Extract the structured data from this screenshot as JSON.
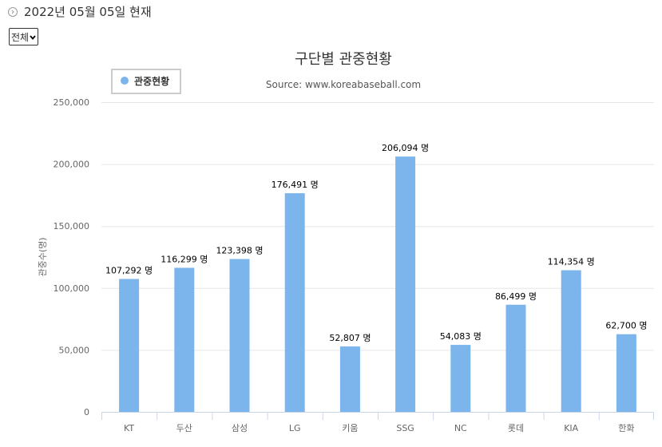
{
  "header": {
    "date_text": "2022년 05월 05일 현재"
  },
  "filter": {
    "selected": "전체"
  },
  "chart_data": {
    "type": "bar",
    "title": "구단별 관중현황",
    "subtitle": "Source: www.koreabaseball.com",
    "ylabel": "관중수(명)",
    "xlabel": "",
    "legend": {
      "label": "관중현황",
      "placement": "top-left"
    },
    "categories": [
      "KT",
      "두산",
      "삼성",
      "LG",
      "키움",
      "SSG",
      "NC",
      "롯데",
      "KIA",
      "한화"
    ],
    "series": [
      {
        "name": "관중현황",
        "values": [
          107292,
          116299,
          123398,
          176491,
          52807,
          206094,
          54083,
          86499,
          114354,
          62700
        ]
      }
    ],
    "data_labels": [
      "107,292 명",
      "116,299 명",
      "123,398 명",
      "176,491 명",
      "52,807 명",
      "206,094 명",
      "54,083 명",
      "86,499 명",
      "114,354 명",
      "62,700 명"
    ],
    "y_ticks": [
      "0",
      "50,000",
      "100,000",
      "150,000",
      "200,000",
      "250,000"
    ],
    "ylim": [
      0,
      250000
    ],
    "grid": true,
    "colors": {
      "bar": "#7cb5ec",
      "grid": "#e6e6e6",
      "axis": "#ccd6eb"
    }
  }
}
